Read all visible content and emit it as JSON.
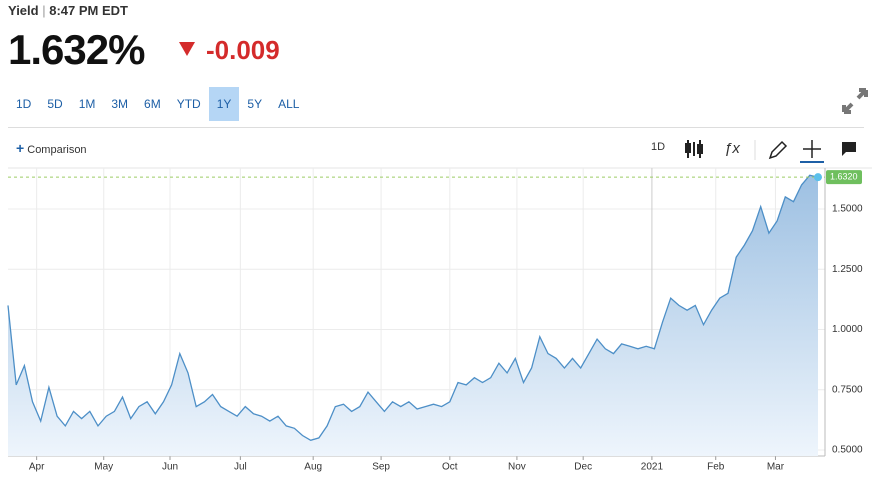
{
  "header": {
    "label": "Yield",
    "time": "8:47 PM EDT",
    "price": "1.632%",
    "change": "-0.009"
  },
  "ranges": [
    "1D",
    "5D",
    "1M",
    "3M",
    "6M",
    "YTD",
    "1Y",
    "5Y",
    "ALL"
  ],
  "active_range": "1Y",
  "toolbar": {
    "comparison": "Comparison",
    "interval": "1D"
  },
  "chart_data": {
    "type": "area",
    "color": "#4d8fc7",
    "grid": true,
    "values": [
      1.1,
      0.77,
      0.85,
      0.7,
      0.62,
      0.76,
      0.64,
      0.6,
      0.66,
      0.63,
      0.66,
      0.6,
      0.64,
      0.66,
      0.72,
      0.63,
      0.68,
      0.7,
      0.65,
      0.7,
      0.77,
      0.9,
      0.82,
      0.68,
      0.7,
      0.73,
      0.68,
      0.66,
      0.64,
      0.68,
      0.65,
      0.64,
      0.62,
      0.64,
      0.6,
      0.59,
      0.56,
      0.54,
      0.55,
      0.6,
      0.68,
      0.69,
      0.66,
      0.68,
      0.74,
      0.7,
      0.66,
      0.7,
      0.68,
      0.7,
      0.67,
      0.68,
      0.69,
      0.68,
      0.7,
      0.78,
      0.77,
      0.8,
      0.78,
      0.8,
      0.86,
      0.82,
      0.88,
      0.78,
      0.84,
      0.97,
      0.9,
      0.88,
      0.84,
      0.88,
      0.84,
      0.9,
      0.96,
      0.92,
      0.9,
      0.94,
      0.93,
      0.92,
      0.93,
      0.92,
      1.03,
      1.13,
      1.1,
      1.08,
      1.1,
      1.02,
      1.08,
      1.13,
      1.15,
      1.3,
      1.35,
      1.41,
      1.51,
      1.4,
      1.45,
      1.55,
      1.53,
      1.6,
      1.64,
      1.632
    ],
    "current_label": "1.6320",
    "xlim": [
      0,
      99
    ],
    "xticks": [
      {
        "value": 3.5,
        "label": "Apr"
      },
      {
        "value": 11.7,
        "label": "May"
      },
      {
        "value": 19.8,
        "label": "Jun"
      },
      {
        "value": 28.4,
        "label": "Jul"
      },
      {
        "value": 37.3,
        "label": "Aug"
      },
      {
        "value": 45.6,
        "label": "Sep"
      },
      {
        "value": 54.0,
        "label": "Oct"
      },
      {
        "value": 62.2,
        "label": "Nov"
      },
      {
        "value": 70.3,
        "label": "Dec"
      },
      {
        "value": 78.7,
        "label": "2021"
      },
      {
        "value": 86.5,
        "label": "Feb"
      },
      {
        "value": 93.8,
        "label": "Mar"
      }
    ],
    "ylim": [
      0.475,
      1.67
    ],
    "yticks": [
      {
        "value": 0.5,
        "label": "0.5000"
      },
      {
        "value": 0.75,
        "label": "0.7500"
      },
      {
        "value": 1.0,
        "label": "1.0000"
      },
      {
        "value": 1.25,
        "label": "1.2500"
      },
      {
        "value": 1.5,
        "label": "1.5000"
      }
    ]
  }
}
